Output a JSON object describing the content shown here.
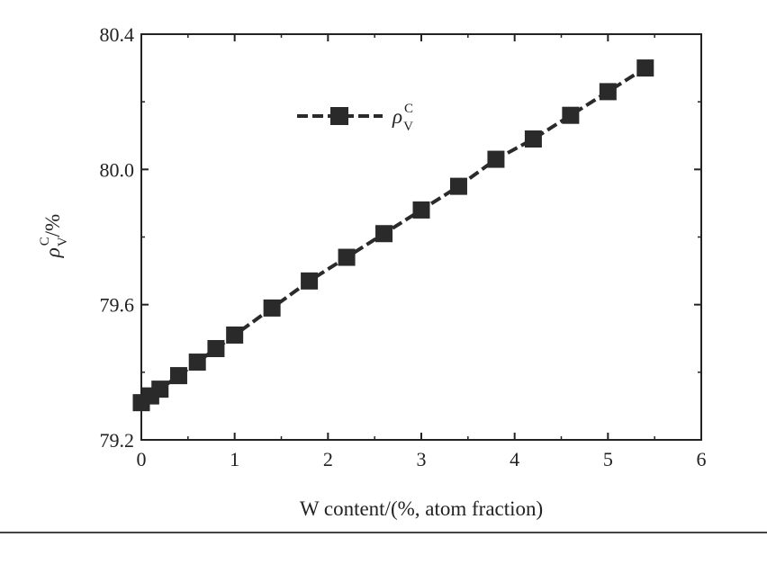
{
  "chart_data": {
    "type": "line",
    "xlabel": "W content/(%, atom fraction)",
    "ylabel": {
      "symbol": "ρ",
      "sup": "C",
      "sub": "V",
      "unit": "/%"
    },
    "xlim": [
      0,
      6
    ],
    "ylim": [
      79.2,
      80.4
    ],
    "xticks": [
      "0",
      "1",
      "2",
      "3",
      "4",
      "5",
      "6"
    ],
    "yticks": [
      "79.2",
      "79.6",
      "80.0",
      "80.4"
    ],
    "xtick_values": [
      0,
      1,
      2,
      3,
      4,
      5,
      6
    ],
    "ytick_values": [
      79.2,
      79.6,
      80.0,
      80.4
    ],
    "legend_position": "top-left",
    "series": [
      {
        "name": "ρ_V^C",
        "legend": {
          "symbol": "ρ",
          "sup": "C",
          "sub": "V"
        },
        "marker": "square",
        "line_style": "dashed",
        "color": "#2a2a2a",
        "x": [
          0.0,
          0.1,
          0.2,
          0.4,
          0.6,
          0.8,
          1.0,
          1.4,
          1.8,
          2.2,
          2.6,
          3.0,
          3.4,
          3.8,
          4.2,
          4.6,
          5.0,
          5.4
        ],
        "y": [
          79.31,
          79.33,
          79.35,
          79.39,
          79.43,
          79.47,
          79.51,
          79.59,
          79.67,
          79.74,
          79.81,
          79.88,
          79.95,
          80.03,
          80.09,
          80.16,
          80.23,
          80.3
        ]
      }
    ]
  }
}
